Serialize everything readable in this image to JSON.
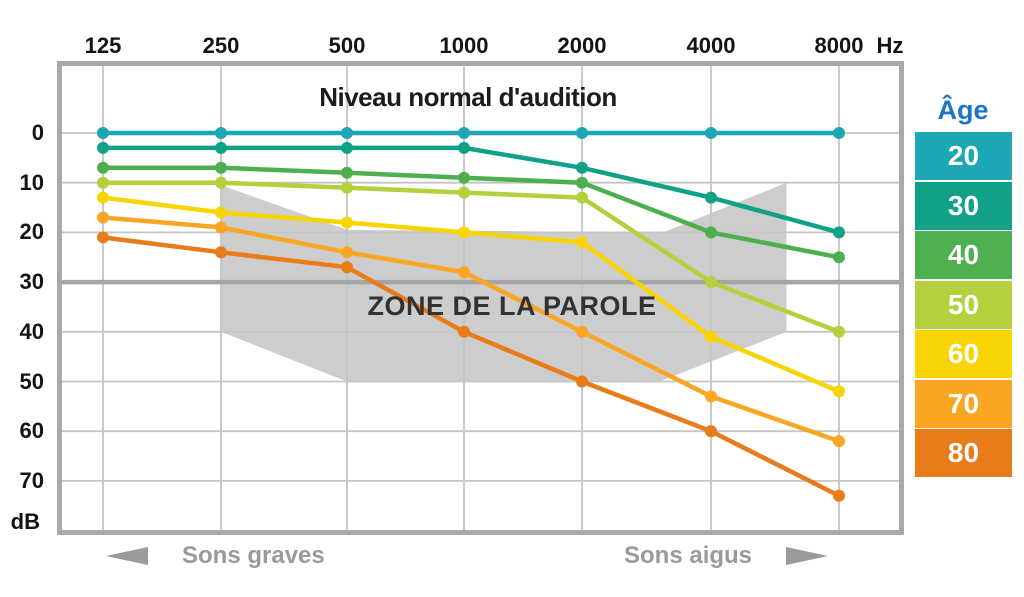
{
  "palette": {
    "background": "#ffffff",
    "grid_line": "#c5c5c5",
    "grid_bold": "#a5a5a5",
    "plot_border": "#a9a9a9",
    "zone_fill": "#cdcdcd",
    "zone_label_text": "#323232",
    "axis_text": "#141414",
    "title_text": "#1c1c1c",
    "footer_text": "#9a9a9a",
    "legend_title_text": "#1b76c5",
    "legend_value_text": "#ffffff"
  },
  "chart_data": {
    "type": "line",
    "title": "Niveau normal d'audition",
    "x_axis": {
      "unit": "Hz",
      "ticks": [
        "125",
        "250",
        "500",
        "1000",
        "2000",
        "4000",
        "8000"
      ],
      "frequencies_hz": [
        125,
        250,
        500,
        1000,
        2000,
        4000,
        8000
      ]
    },
    "y_axis": {
      "unit": "dB",
      "ticks": [
        0,
        10,
        20,
        30,
        40,
        50,
        60,
        70
      ],
      "range": [
        0,
        80
      ],
      "direction": "down",
      "bold_gridline_at": 30
    },
    "legend": {
      "title": "Âge",
      "position": "right",
      "entries": [
        "20",
        "30",
        "40",
        "50",
        "60",
        "70",
        "80"
      ]
    },
    "series": [
      {
        "age": "20",
        "color": "#1ca7b4",
        "values": [
          0,
          0,
          0,
          0,
          0,
          0,
          0
        ]
      },
      {
        "age": "30",
        "color": "#10a187",
        "values": [
          3,
          3,
          3,
          3,
          7,
          13,
          20
        ]
      },
      {
        "age": "40",
        "color": "#4daf50",
        "values": [
          7,
          7,
          8,
          9,
          10,
          20,
          25
        ]
      },
      {
        "age": "50",
        "color": "#b3d13c",
        "values": [
          10,
          10,
          11,
          12,
          13,
          30,
          40
        ]
      },
      {
        "age": "60",
        "color": "#f8d502",
        "values": [
          13,
          16,
          18,
          20,
          22,
          41,
          52
        ]
      },
      {
        "age": "70",
        "color": "#faa623",
        "values": [
          17,
          19,
          24,
          28,
          40,
          53,
          62
        ]
      },
      {
        "age": "80",
        "color": "#e87c18",
        "values": [
          21,
          24,
          27,
          40,
          50,
          60,
          73
        ]
      }
    ],
    "speech_zone": {
      "label": "ZONE DE LA PAROLE",
      "vertices_freq_index_db": [
        [
          1,
          10.5
        ],
        [
          2,
          19.5
        ],
        [
          4.63,
          20
        ],
        [
          5.59,
          10
        ],
        [
          5.59,
          40
        ],
        [
          4.6,
          50
        ],
        [
          2,
          50
        ],
        [
          1,
          40
        ]
      ]
    },
    "footer": {
      "low_label": "Sons graves",
      "high_label": "Sons aigus"
    }
  }
}
